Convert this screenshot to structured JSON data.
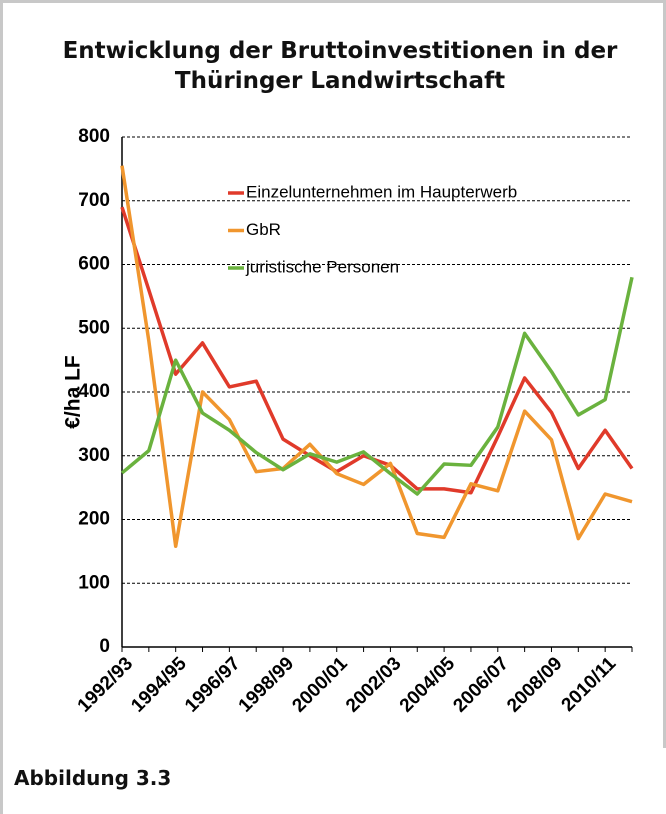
{
  "chart_data": {
    "type": "line",
    "title": "Entwicklung der Bruttoinvestitionen in der Thüringer Landwirtschaft",
    "ylabel": "€/ha LF",
    "categories": [
      "1992/93",
      null,
      "1994/95",
      null,
      "1996/97",
      null,
      "1998/99",
      null,
      "2000/01",
      null,
      "2002/03",
      null,
      "2004/05",
      null,
      "2006/07",
      null,
      "2008/09",
      null,
      "2010/11",
      null
    ],
    "series": [
      {
        "name": "Einzelunternehmen im Haupterwerb",
        "color": "#e03a2a",
        "values": [
          690,
          560,
          428,
          477,
          408,
          417,
          326,
          300,
          275,
          300,
          285,
          248,
          248,
          242,
          330,
          422,
          368,
          280,
          340,
          280
        ]
      },
      {
        "name": "GbR",
        "color": "#f0962e",
        "values": [
          755,
          480,
          158,
          400,
          357,
          275,
          280,
          318,
          272,
          255,
          288,
          178,
          172,
          256,
          245,
          370,
          325,
          170,
          240,
          228
        ]
      },
      {
        "name": "juristische Personen",
        "color": "#6ab23e",
        "values": [
          273,
          308,
          450,
          367,
          340,
          305,
          278,
          303,
          290,
          306,
          272,
          240,
          287,
          285,
          345,
          492,
          432,
          364,
          388,
          580
        ]
      }
    ],
    "ylim": [
      0,
      800
    ],
    "yticks": [
      0,
      100,
      200,
      300,
      400,
      500,
      600,
      700,
      800
    ],
    "grid": true
  },
  "caption": "Abbildung 3.3"
}
